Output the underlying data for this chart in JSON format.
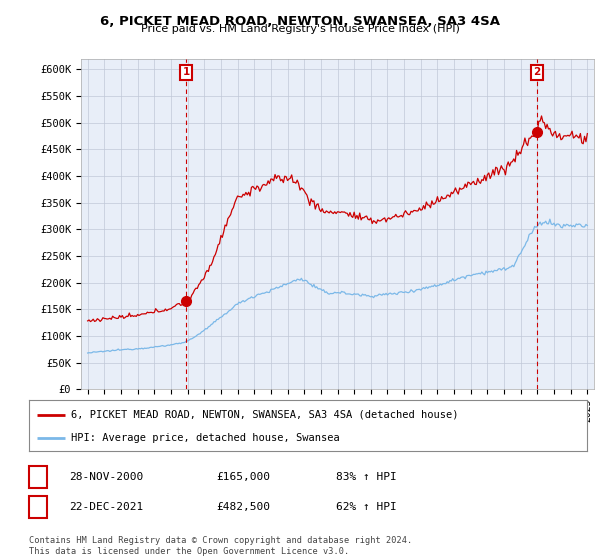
{
  "title1": "6, PICKET MEAD ROAD, NEWTON, SWANSEA, SA3 4SA",
  "title2": "Price paid vs. HM Land Registry's House Price Index (HPI)",
  "ylabel_ticks": [
    "£0",
    "£50K",
    "£100K",
    "£150K",
    "£200K",
    "£250K",
    "£300K",
    "£350K",
    "£400K",
    "£450K",
    "£500K",
    "£550K",
    "£600K"
  ],
  "ylim": [
    0,
    620000
  ],
  "ytick_vals": [
    0,
    50000,
    100000,
    150000,
    200000,
    250000,
    300000,
    350000,
    400000,
    450000,
    500000,
    550000,
    600000
  ],
  "sale1_date": 2000.92,
  "sale1_price": 165000,
  "sale2_date": 2021.98,
  "sale2_price": 482500,
  "legend_line1": "6, PICKET MEAD ROAD, NEWTON, SWANSEA, SA3 4SA (detached house)",
  "legend_line2": "HPI: Average price, detached house, Swansea",
  "ann1_date": "28-NOV-2000",
  "ann1_price": "£165,000",
  "ann1_pct": "83% ↑ HPI",
  "ann2_date": "22-DEC-2021",
  "ann2_price": "£482,500",
  "ann2_pct": "62% ↑ HPI",
  "footer": "Contains HM Land Registry data © Crown copyright and database right 2024.\nThis data is licensed under the Open Government Licence v3.0.",
  "hpi_color": "#7bb8e8",
  "price_color": "#cc0000",
  "chart_bg": "#e8eef8",
  "background_color": "#ffffff",
  "grid_color": "#c0c8d8"
}
